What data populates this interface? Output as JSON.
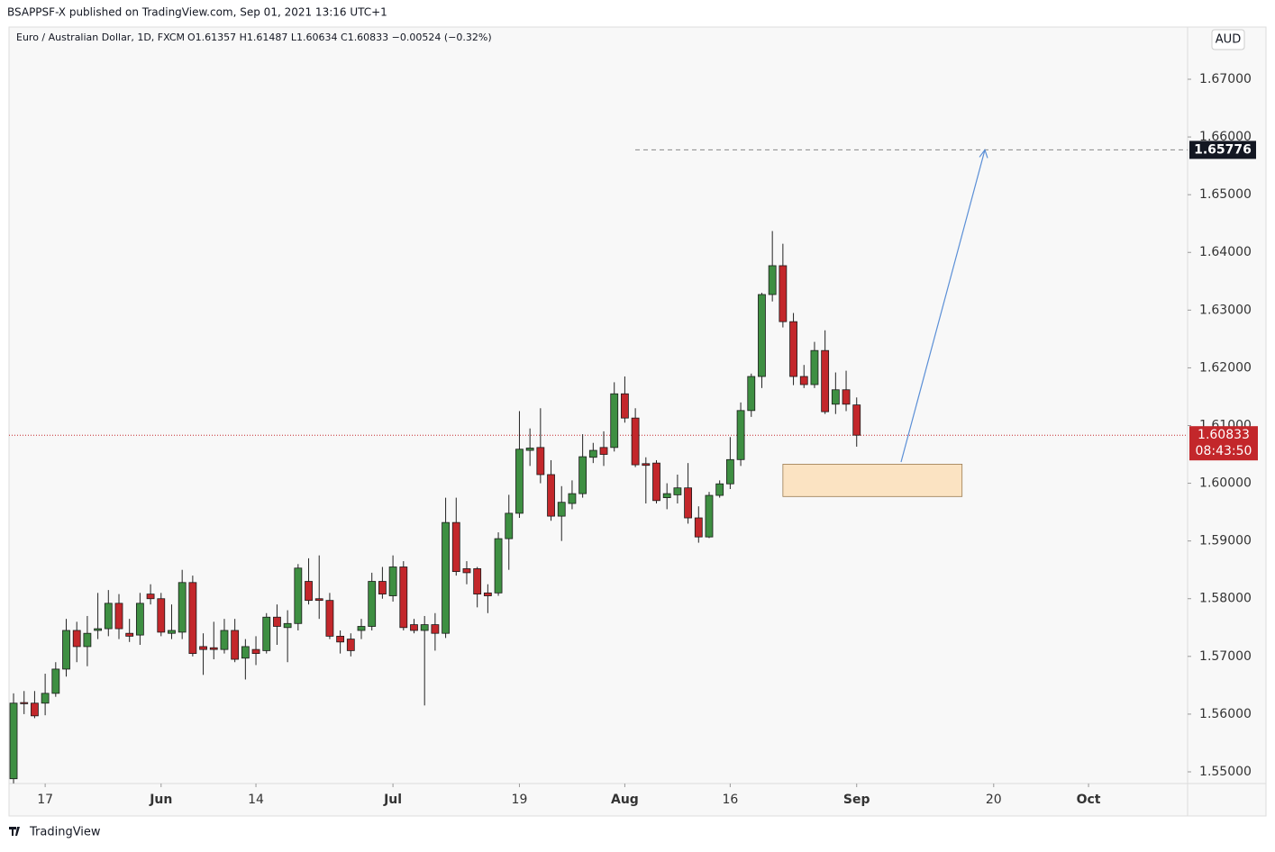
{
  "header": "BSAPPSF-X published on TradingView.com, Sep 01, 2021 13:16 UTC+1",
  "footer": "TradingView",
  "chart_data": {
    "type": "candlestick",
    "title": "Euro / Australian Dollar, 1D, FXCM",
    "subtitle": "O1.61357 H1.61487 L1.60634 C1.60833 −0.00524 (−0.32%)",
    "currency_label": "AUD",
    "countdown": "08:43:50",
    "up_color": "#3e8f42",
    "down_color": "#c3272b",
    "open": [
      1.5488,
      1.562,
      1.5619,
      1.5619,
      1.5636,
      1.5678,
      1.5745,
      1.5717,
      1.5745,
      1.5748,
      1.5792,
      1.574,
      1.5737,
      1.5808,
      1.58,
      1.574,
      1.5742,
      1.5828,
      1.5717,
      1.5715,
      1.5712,
      1.5745,
      1.5697,
      1.5712,
      1.571,
      1.5768,
      1.575,
      1.5757,
      1.583,
      1.58,
      1.5797,
      1.5735,
      1.573,
      1.5745,
      1.5752,
      1.583,
      1.5805,
      1.5855,
      1.5755,
      1.5745,
      1.5755,
      1.574,
      1.5932,
      1.5852,
      1.5852,
      1.581,
      1.581,
      1.5904,
      1.5948,
      1.6057,
      1.6062,
      1.6015,
      1.5943,
      1.5965,
      1.5982,
      1.6045,
      1.6062,
      1.6062,
      1.6155,
      1.6113,
      1.6034,
      1.6035,
      1.5975,
      1.598,
      1.5992,
      1.594,
      1.5907,
      1.5979,
      1.5999,
      1.6041,
      1.6126,
      1.6185,
      1.6327,
      1.6377,
      1.628,
      1.6185,
      1.6171,
      1.623,
      1.6137,
      1.6162,
      1.61357
    ],
    "high": [
      1.5636,
      1.564,
      1.564,
      1.567,
      1.569,
      1.5765,
      1.576,
      1.577,
      1.581,
      1.5815,
      1.5808,
      1.5765,
      1.581,
      1.5825,
      1.581,
      1.579,
      1.585,
      1.584,
      1.574,
      1.576,
      1.5765,
      1.5765,
      1.573,
      1.5735,
      1.5775,
      1.579,
      1.578,
      1.586,
      1.587,
      1.5875,
      1.581,
      1.5745,
      1.574,
      1.5765,
      1.5845,
      1.5855,
      1.5875,
      1.5865,
      1.5765,
      1.577,
      1.5775,
      1.5975,
      1.5975,
      1.5865,
      1.5855,
      1.5825,
      1.5915,
      1.598,
      1.6125,
      1.6095,
      1.613,
      1.604,
      1.5995,
      1.6005,
      1.6085,
      1.607,
      1.609,
      1.6175,
      1.6185,
      1.613,
      1.6045,
      1.604,
      1.6,
      1.6015,
      1.6035,
      1.596,
      1.5985,
      1.6005,
      1.608,
      1.614,
      1.619,
      1.633,
      1.6437,
      1.6415,
      1.6295,
      1.6205,
      1.6245,
      1.6265,
      1.6192,
      1.6195,
      1.61487
    ],
    "low": [
      1.548,
      1.56,
      1.5593,
      1.5598,
      1.563,
      1.5665,
      1.569,
      1.5683,
      1.573,
      1.5735,
      1.573,
      1.5725,
      1.572,
      1.579,
      1.5735,
      1.573,
      1.573,
      1.57,
      1.5668,
      1.5695,
      1.5705,
      1.569,
      1.566,
      1.5685,
      1.5705,
      1.572,
      1.569,
      1.5745,
      1.579,
      1.5765,
      1.573,
      1.5705,
      1.57,
      1.573,
      1.5745,
      1.58,
      1.5795,
      1.5745,
      1.574,
      1.5615,
      1.571,
      1.5732,
      1.584,
      1.5825,
      1.5785,
      1.5775,
      1.5805,
      1.585,
      1.594,
      1.603,
      1.6,
      1.5935,
      1.59,
      1.5955,
      1.5975,
      1.6035,
      1.603,
      1.6055,
      1.6105,
      1.6028,
      1.5965,
      1.5965,
      1.5955,
      1.5965,
      1.593,
      1.5897,
      1.5905,
      1.5975,
      1.599,
      1.603,
      1.6115,
      1.6165,
      1.6315,
      1.627,
      1.617,
      1.6165,
      1.6165,
      1.612,
      1.612,
      1.6125,
      1.60634
    ],
    "close": [
      1.5619,
      1.5618,
      1.5597,
      1.5636,
      1.5678,
      1.5745,
      1.5717,
      1.574,
      1.5748,
      1.5792,
      1.5748,
      1.5735,
      1.5792,
      1.58,
      1.5742,
      1.5745,
      1.5828,
      1.5705,
      1.5712,
      1.5712,
      1.5745,
      1.5695,
      1.5717,
      1.5705,
      1.5768,
      1.5752,
      1.5757,
      1.5853,
      1.5797,
      1.5797,
      1.5735,
      1.5725,
      1.571,
      1.5752,
      1.583,
      1.5808,
      1.5855,
      1.575,
      1.5745,
      1.5755,
      1.574,
      1.5932,
      1.5847,
      1.5845,
      1.5808,
      1.5805,
      1.5904,
      1.5948,
      1.6059,
      1.6061,
      1.6015,
      1.5943,
      1.5967,
      1.5982,
      1.6046,
      1.6057,
      1.605,
      1.6155,
      1.6113,
      1.6032,
      1.6031,
      1.597,
      1.5982,
      1.5992,
      1.594,
      1.5907,
      1.5979,
      1.5999,
      1.6041,
      1.6126,
      1.6185,
      1.6327,
      1.6377,
      1.628,
      1.6185,
      1.6171,
      1.623,
      1.6124,
      1.6162,
      1.6137,
      1.60833
    ],
    "ylim": [
      1.54797,
      1.67905
    ],
    "yticks": [
      {
        "value": 1.55,
        "label": "1.55000"
      },
      {
        "value": 1.56,
        "label": "1.56000"
      },
      {
        "value": 1.57,
        "label": "1.57000"
      },
      {
        "value": 1.58,
        "label": "1.58000"
      },
      {
        "value": 1.59,
        "label": "1.59000"
      },
      {
        "value": 1.6,
        "label": "1.60000"
      },
      {
        "value": 1.61,
        "label": "1.61000"
      },
      {
        "value": 1.62,
        "label": "1.62000"
      },
      {
        "value": 1.63,
        "label": "1.63000"
      },
      {
        "value": 1.64,
        "label": "1.64000"
      },
      {
        "value": 1.65,
        "label": "1.65000"
      },
      {
        "value": 1.66,
        "label": "1.66000"
      },
      {
        "value": 1.67,
        "label": "1.67000"
      }
    ],
    "xlim": [
      -0.43,
      111.4
    ],
    "xticks": [
      {
        "value": 3,
        "label": "17"
      },
      {
        "value": 14,
        "label": "Jun"
      },
      {
        "value": 23,
        "label": "14"
      },
      {
        "value": 36,
        "label": "Jul"
      },
      {
        "value": 48,
        "label": "19"
      },
      {
        "value": 58,
        "label": "Aug"
      },
      {
        "value": 68,
        "label": "16"
      },
      {
        "value": 80,
        "label": "Sep"
      },
      {
        "value": 93,
        "label": "20"
      },
      {
        "value": 102,
        "label": "Oct"
      }
    ],
    "target": 1.65776,
    "zone_ylim": [
      1.5977,
      1.6033
    ],
    "zone_x": [
      73,
      90
    ]
  }
}
